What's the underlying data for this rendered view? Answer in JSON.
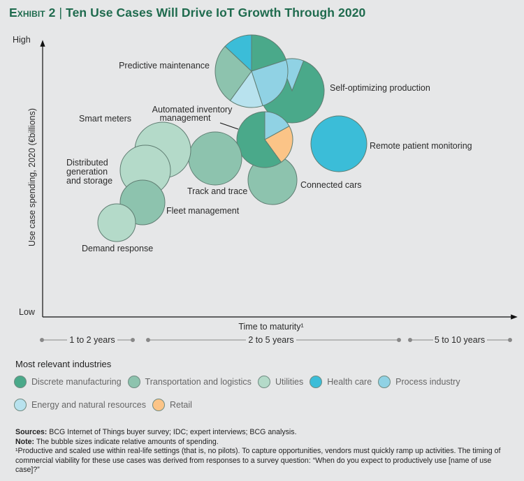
{
  "title": {
    "exhibit": "Exhibit 2",
    "separator": "|",
    "text": "Ten Use Cases Will Drive IoT Growth Through 2020"
  },
  "colors": {
    "discrete_manufacturing": "#4aa98a",
    "transportation": "#8dc3ae",
    "utilities": "#b4dac9",
    "health_care": "#3bbdd8",
    "process_industry": "#90d2e4",
    "energy": "#b8e2ee",
    "retail": "#fbc487",
    "title": "#1f6b4e"
  },
  "chart_data": {
    "type": "bubble",
    "ylabel": "Use case spending, 2020 (€billions)",
    "xlabel": "Time to maturity¹",
    "y_high": "High",
    "y_low": "Low",
    "x_bands": [
      "1 to 2 years",
      "2 to 5 years",
      "5 to 10 years"
    ],
    "bubbles": [
      {
        "name": "Self-optimizing production",
        "slices": [
          {
            "industry": "process_industry",
            "share": 0.12
          },
          {
            "industry": "discrete_manufacturing",
            "share": 0.88
          }
        ]
      },
      {
        "name": "Predictive maintenance",
        "slices": [
          {
            "industry": "discrete_manufacturing",
            "share": 0.2
          },
          {
            "industry": "process_industry",
            "share": 0.25
          },
          {
            "industry": "energy",
            "share": 0.15
          },
          {
            "industry": "transportation",
            "share": 0.27
          },
          {
            "industry": "health_care",
            "share": 0.13
          }
        ]
      },
      {
        "name": "Remote patient monitoring",
        "slices": [
          {
            "industry": "health_care",
            "share": 1
          }
        ]
      },
      {
        "name": "Connected cars",
        "slices": [
          {
            "industry": "transportation",
            "share": 1
          }
        ]
      },
      {
        "name": "Automated inventory management",
        "slices": [
          {
            "industry": "process_industry",
            "share": 0.17
          },
          {
            "industry": "retail",
            "share": 0.23
          },
          {
            "industry": "discrete_manufacturing",
            "share": 0.6
          }
        ]
      },
      {
        "name": "Track and trace",
        "slices": [
          {
            "industry": "transportation",
            "share": 1
          }
        ]
      },
      {
        "name": "Smart meters",
        "slices": [
          {
            "industry": "utilities",
            "share": 1
          }
        ]
      },
      {
        "name": "Distributed generation and storage",
        "slices": [
          {
            "industry": "utilities",
            "share": 1
          }
        ]
      },
      {
        "name": "Fleet management",
        "slices": [
          {
            "industry": "transportation",
            "share": 1
          }
        ]
      },
      {
        "name": "Demand response",
        "slices": [
          {
            "industry": "utilities",
            "share": 1
          }
        ]
      }
    ]
  },
  "labels": {
    "predictive": "Predictive maintenance",
    "selfopt": "Self-optimizing production",
    "inventory_1": "Automated inventory",
    "inventory_2": "management",
    "smart": "Smart meters",
    "dist_1": "Distributed",
    "dist_2": "generation",
    "dist_3": "and storage",
    "track": "Track and trace",
    "cars": "Connected cars",
    "fleet": "Fleet management",
    "demand": "Demand response",
    "remote": "Remote patient monitoring"
  },
  "legend": {
    "title": "Most relevant industries",
    "items": [
      {
        "key": "discrete_manufacturing",
        "label": "Discrete manufacturing"
      },
      {
        "key": "transportation",
        "label": "Transportation and logistics"
      },
      {
        "key": "utilities",
        "label": "Utilities"
      },
      {
        "key": "health_care",
        "label": "Health care"
      },
      {
        "key": "process_industry",
        "label": "Process industry"
      },
      {
        "key": "energy",
        "label": "Energy and natural resources"
      },
      {
        "key": "retail",
        "label": "Retail"
      }
    ]
  },
  "notes": {
    "sources_label": "Sources:",
    "sources": " BCG Internet of Things buyer survey; IDC; expert interviews; BCG analysis.",
    "note_label": "Note:",
    "note": " The bubble sizes indicate relative amounts of spending.",
    "footnote": "¹Productive and scaled use within real-life settings (that is, no pilots). To capture opportunities, vendors must quickly ramp up activities. The timing of commercial viability for these use cases was derived from responses to a survey question: “When do you expect to productively use [name of use case]?”"
  }
}
